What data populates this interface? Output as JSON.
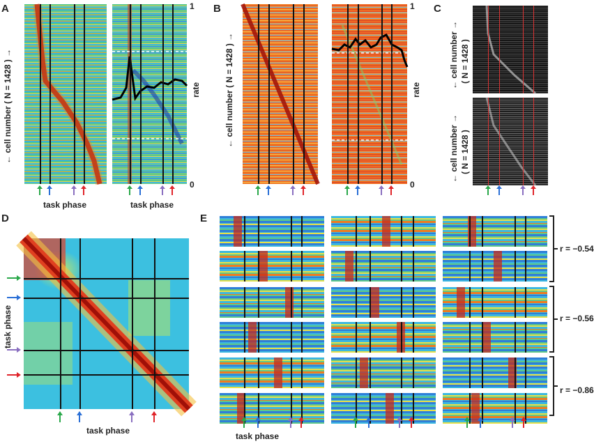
{
  "panels": {
    "a": {
      "letter": "A",
      "ylabel": "← cell number ( N = 1428 ) →",
      "xlabel": "task phase",
      "rate_max": "1",
      "rate_min": "0",
      "rate_label": "rate"
    },
    "b": {
      "letter": "B",
      "ylabel": "← cell number ( N = 1428 ) →",
      "rate_max": "1",
      "rate_min": "0",
      "rate_label": "rate"
    },
    "c": {
      "letter": "C",
      "ylabel_top": "← cell number →",
      "ylabel_top2": "( N = 1428 )",
      "ylabel_bot": "← cell number →",
      "ylabel_bot2": "( N = 1428 )"
    },
    "d": {
      "letter": "D",
      "xlabel": "task phase",
      "ylabel": "task phase"
    },
    "e": {
      "letter": "E",
      "xlabel": "task phase",
      "r1": "r = −0.54",
      "r2": "r = −0.56",
      "r3": "r = −0.86"
    }
  },
  "arrow_colors": {
    "green": "#2aa84a",
    "blue": "#2a6fd6",
    "purple": "#8a6fc0",
    "red": "#e0242a"
  },
  "heat_colors": {
    "red": "#b0120a",
    "orange": "#f07a20",
    "yellow": "#e6e04a",
    "green": "#5fc88a",
    "cyan": "#3cb8e0",
    "blue": "#1f3fa8"
  }
}
